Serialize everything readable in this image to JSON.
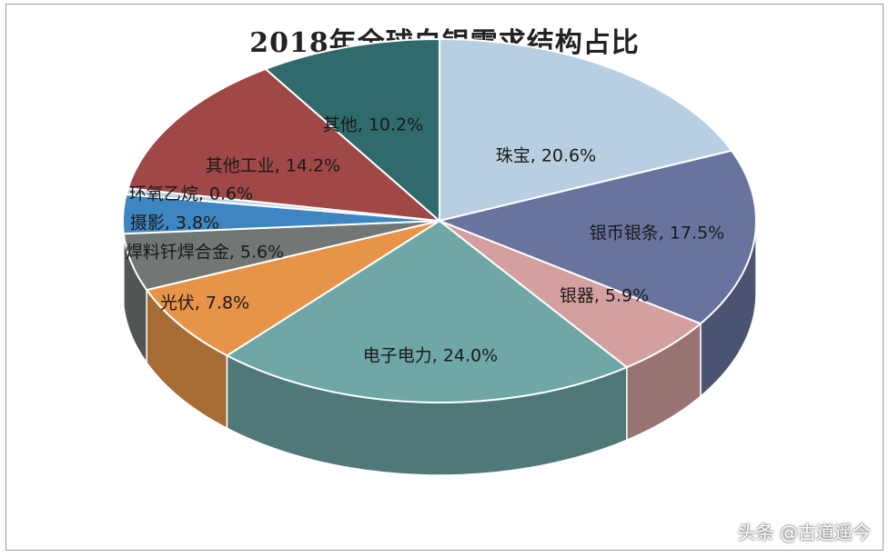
{
  "chart_data": {
    "type": "pie",
    "title": "2018年全球白银需求结构占比",
    "slices": [
      {
        "label": "珠宝, 20.6%",
        "name": "珠宝",
        "value": 20.6,
        "color": "#b7cfe0"
      },
      {
        "label": "银币银条, 17.5%",
        "name": "银币银条",
        "value": 17.5,
        "color": "#68739e"
      },
      {
        "label": "银器, 5.9%",
        "name": "银器",
        "value": 5.9,
        "color": "#d49f9f"
      },
      {
        "label": "电子电力, 24.0%",
        "name": "电子电力",
        "value": 24.0,
        "color": "#6ea7a6"
      },
      {
        "label": "光伏, 7.8%",
        "name": "光伏",
        "value": 7.8,
        "color": "#e89448"
      },
      {
        "label": "焊料钎焊合金, 5.6%",
        "name": "焊料钎焊合金",
        "value": 5.6,
        "color": "#707775"
      },
      {
        "label": "摄影, 3.8%",
        "name": "摄影",
        "value": 3.8,
        "color": "#3e86c2"
      },
      {
        "label": "环氧乙烷, 0.6%",
        "name": "环氧乙烷",
        "value": 0.6,
        "color": "#bcd2e8"
      },
      {
        "label": "其他工业, 14.2%",
        "name": "其他工业",
        "value": 14.2,
        "color": "#a04747"
      },
      {
        "label": "其他, 10.2%",
        "name": "其他",
        "value": 10.2,
        "color": "#2f6a6d"
      }
    ]
  },
  "watermark": "头条 @古道遥今"
}
